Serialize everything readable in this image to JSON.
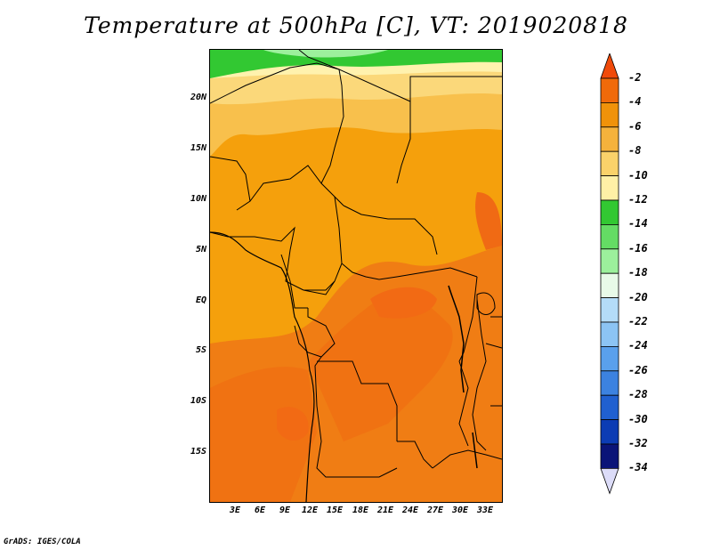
{
  "title": "Temperature at 500hPa [C], VT: 2019020818",
  "y_axis_labels": [
    "20N",
    "15N",
    "10N",
    "5N",
    "EQ",
    "5S",
    "10S",
    "15S"
  ],
  "x_axis_labels": [
    "3E",
    "6E",
    "9E",
    "12E",
    "15E",
    "18E",
    "21E",
    "24E",
    "27E",
    "30E",
    "33E"
  ],
  "colorbar": {
    "labels": [
      "-2",
      "-4",
      "-6",
      "-8",
      "-10",
      "-12",
      "-14",
      "-16",
      "-18",
      "-20",
      "-22",
      "-24",
      "-26",
      "-28",
      "-30",
      "-32",
      "-34"
    ],
    "colors": [
      "#f04a0a",
      "#f06a0a",
      "#f0920a",
      "#f5b23c",
      "#fad26a",
      "#fff0a6",
      "#32c832",
      "#64dc64",
      "#9cf09c",
      "#e8fae8",
      "#b4dcf8",
      "#8cc4f4",
      "#5aa0ec",
      "#3c82e0",
      "#2060d0",
      "#0c3cb4",
      "#0a1478",
      "#dcdcf8"
    ]
  },
  "footer": "GrADS: IGES/COLA"
}
